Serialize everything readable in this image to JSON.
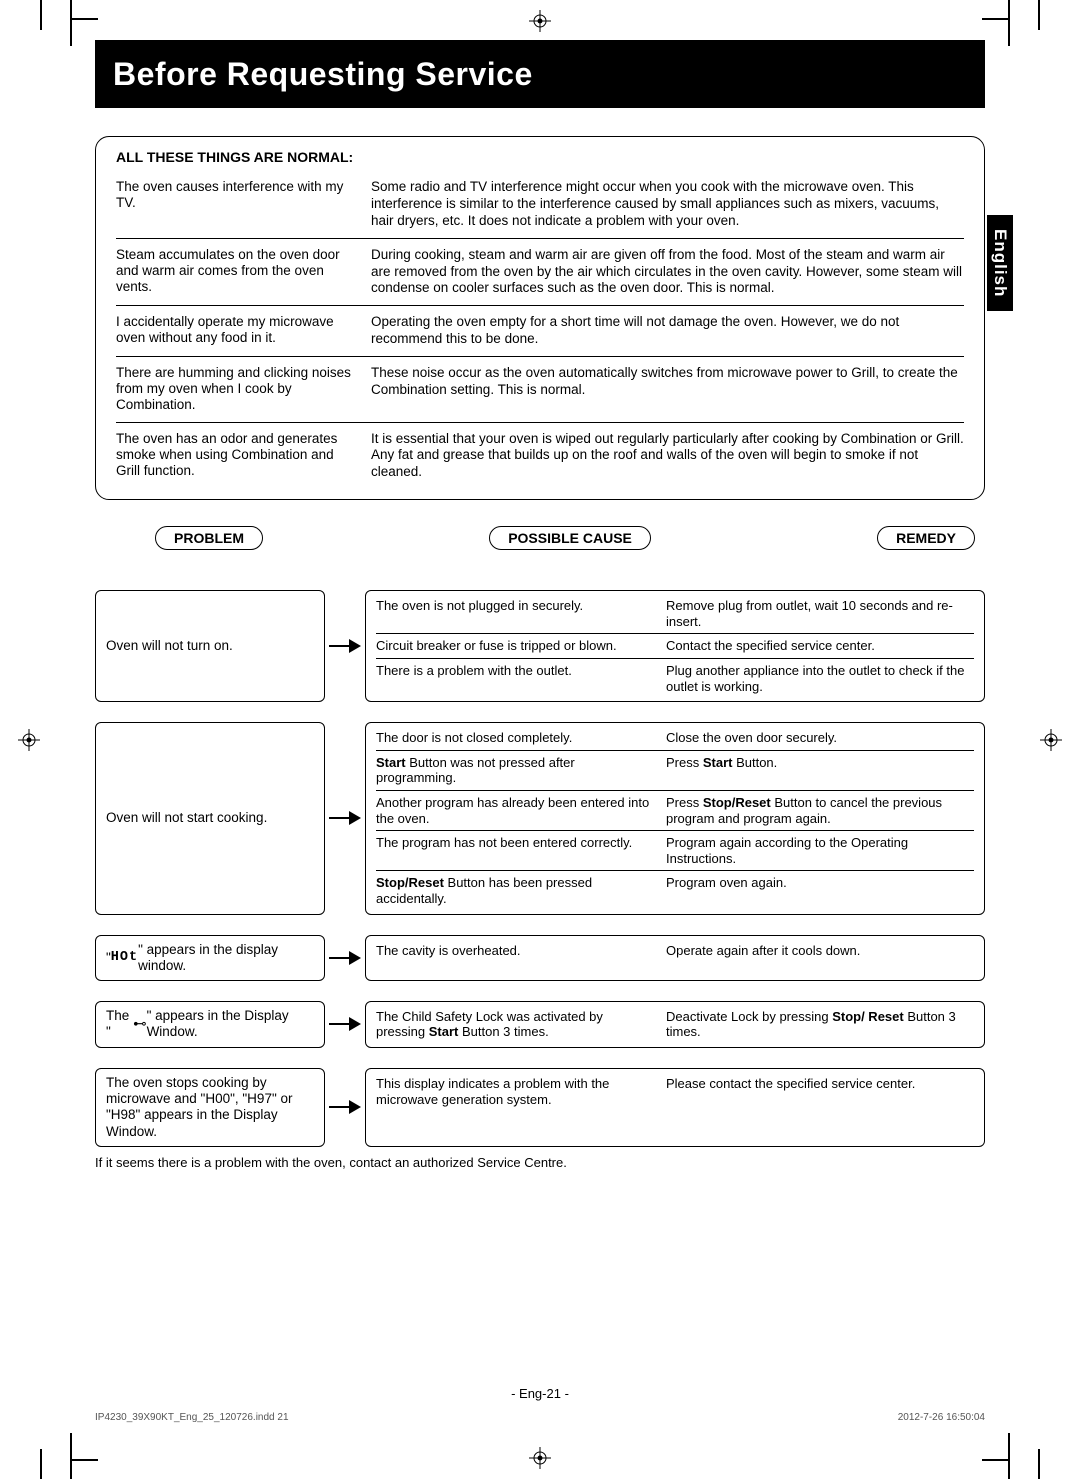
{
  "title": "Before Requesting Service",
  "language_tab": "English",
  "normal_section": {
    "heading": "ALL THESE THINGS ARE NORMAL:",
    "rows": [
      {
        "issue": "The oven causes interference with my TV.",
        "explain": "Some radio and TV interference might occur when you cook with the microwave oven. This interference is similar to the interference caused by small appliances such as mixers, vacuums, hair dryers, etc. It does not indicate a problem with your oven."
      },
      {
        "issue": "Steam accumulates on the oven door and warm air comes from the oven vents.",
        "explain": "During cooking, steam and warm air are given off from the food. Most of the steam and warm air are removed from the oven by the air which circulates in the oven cavity. However, some steam will condense on cooler surfaces such as the oven door. This is normal."
      },
      {
        "issue": "I accidentally operate my microwave oven without any food in it.",
        "explain": "Operating the oven empty for a short time will not damage the oven. However, we do not recommend this to be done."
      },
      {
        "issue": "There are humming and clicking noises from my oven when I cook by Combination.",
        "explain": "These noise occur as the oven automatically switches from microwave power to Grill, to create the Combination setting. This is normal."
      },
      {
        "issue": "The oven has an odor and generates smoke when using Combination and Grill function.",
        "explain": "It is essential that your oven is wiped out regularly particularly after cooking by Combination or Grill. Any fat and grease that builds up on the roof and walls of the oven will begin to smoke if not cleaned."
      }
    ]
  },
  "headers": {
    "problem": "PROBLEM",
    "cause": "POSSIBLE CAUSE",
    "remedy": "REMEDY"
  },
  "troubleshoot": [
    {
      "problem": "Oven will not turn on.",
      "rows": [
        {
          "cause": "The oven is not plugged in securely.",
          "remedy": "Remove plug from outlet, wait 10 seconds and re-insert."
        },
        {
          "cause": "Circuit breaker or fuse is tripped or blown.",
          "remedy": "Contact the specified service center."
        },
        {
          "cause": "There is a problem with the outlet.",
          "remedy": "Plug another appliance into the outlet to check if the outlet is working."
        }
      ]
    },
    {
      "problem": "Oven will not start cooking.",
      "rows": [
        {
          "cause": "The door is not closed completely.",
          "remedy": "Close the oven door securely."
        },
        {
          "cause_html": "<span class='bold'>Start</span> Button was not pressed after programming.",
          "remedy_html": "Press <span class='bold'>Start</span> Button."
        },
        {
          "cause": "Another program has already been entered into the oven.",
          "remedy_html": "Press <span class='bold'>Stop/Reset</span> Button to cancel the previous program and program again."
        },
        {
          "cause": "The program has not been entered correctly.",
          "remedy": "Program again according to the Operating Instructions."
        },
        {
          "cause_html": "<span class='bold'>Stop/Reset</span> Button has been pressed accidentally.",
          "remedy": "Program oven again."
        }
      ]
    },
    {
      "problem_html": "\"<span class='seg-font'>HOt</span>\" appears in the display window.",
      "rows": [
        {
          "cause": "The cavity is overheated.",
          "remedy": "Operate again after it cools down."
        }
      ]
    },
    {
      "problem_html": "The \"<span style='font-family:serif'>⊷</span>\" appears in the Display Window.",
      "rows": [
        {
          "cause_html": "The Child Safety Lock was activated by pressing <span class='bold'>Start</span> Button 3 times.",
          "remedy_html": "Deactivate Lock by pressing <span class='bold'>Stop/ Reset</span> Button 3 times."
        }
      ]
    },
    {
      "problem": "The oven stops cooking by microwave and \"H00\", \"H97\" or \"H98\" appears in the Display Window.",
      "rows": [
        {
          "cause": "This display indicates a problem with the microwave generation system.",
          "remedy": "Please contact the specified service center."
        }
      ]
    }
  ],
  "footnote": "If it seems there is a problem with the oven, contact an authorized Service Centre.",
  "page_number": "- Eng-21 -",
  "footer_left": "IP4230_39X90KT_Eng_25_120726.indd   21",
  "footer_right": "2012-7-26   16:50:04"
}
